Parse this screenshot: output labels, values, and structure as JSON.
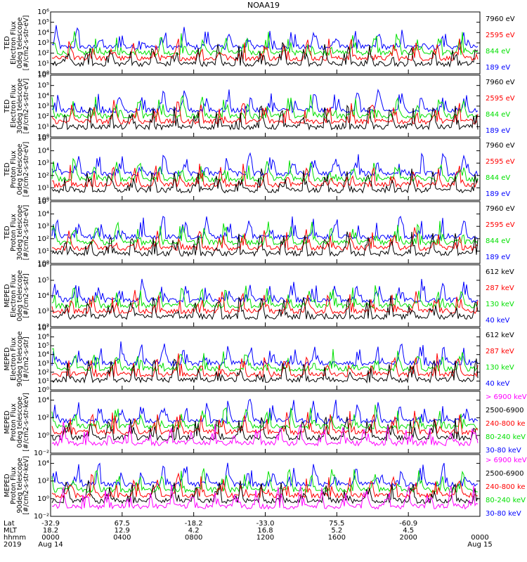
{
  "title": "NOAA19",
  "colors": {
    "black": "#000000",
    "red": "#ff0000",
    "green": "#00e000",
    "blue": "#0000ff",
    "magenta": "#ff00ff"
  },
  "chart_data": [
    {
      "type": "line",
      "ylabel": [
        "TED",
        "Electron Flux",
        "0deg telescope",
        "[#/cm2-s-str-eV]"
      ],
      "yscale": "log",
      "ylim_exp": [
        0,
        6
      ],
      "tick_labels": [
        "10⁰",
        "10¹",
        "10²",
        "10³",
        "10⁴",
        "10⁵",
        "10⁶"
      ],
      "series": [
        {
          "name": "7960 eV",
          "color": "#000000"
        },
        {
          "name": "2595 eV",
          "color": "#ff0000"
        },
        {
          "name": "844 eV",
          "color": "#00e000"
        },
        {
          "name": "189 eV",
          "color": "#0000ff"
        }
      ]
    },
    {
      "type": "line",
      "ylabel": [
        "TED",
        "Electron Flux",
        "30deg telescope",
        "[#/cm2-s-str-eV]"
      ],
      "yscale": "log",
      "ylim_exp": [
        0,
        6
      ],
      "tick_labels": [
        "10⁰",
        "10¹",
        "10²",
        "10³",
        "10⁴",
        "10⁵",
        "10⁶"
      ],
      "series": [
        {
          "name": "7960 eV",
          "color": "#000000"
        },
        {
          "name": "2595 eV",
          "color": "#ff0000"
        },
        {
          "name": "844 eV",
          "color": "#00e000"
        },
        {
          "name": "189 eV",
          "color": "#0000ff"
        }
      ]
    },
    {
      "type": "line",
      "ylabel": [
        "TED",
        "Proton Flux",
        "0deg telescope",
        "[#/cm2-s-str-eV]"
      ],
      "yscale": "log",
      "ylim_exp": [
        0,
        5
      ],
      "tick_labels": [
        "10⁰",
        "10¹",
        "10²",
        "10³",
        "10⁴",
        "10⁵"
      ],
      "series": [
        {
          "name": "7960 eV",
          "color": "#000000"
        },
        {
          "name": "2595 eV",
          "color": "#ff0000"
        },
        {
          "name": "844 eV",
          "color": "#00e000"
        },
        {
          "name": "189 eV",
          "color": "#0000ff"
        }
      ]
    },
    {
      "type": "line",
      "ylabel": [
        "TED",
        "Proton Flux",
        "30deg telescope",
        "[#/cm2-s-str-eV]"
      ],
      "yscale": "log",
      "ylim_exp": [
        0,
        5
      ],
      "tick_labels": [
        "10⁰",
        "10¹",
        "10²",
        "10³",
        "10⁴",
        "10⁵"
      ],
      "series": [
        {
          "name": "7960 eV",
          "color": "#000000"
        },
        {
          "name": "2595 eV",
          "color": "#ff0000"
        },
        {
          "name": "844 eV",
          "color": "#00e000"
        },
        {
          "name": "189 eV",
          "color": "#0000ff"
        }
      ]
    },
    {
      "type": "line",
      "ylabel": [
        "MEPED",
        "Electron Flux",
        "0deg telescope",
        "[#/cm2-s-str]"
      ],
      "yscale": "log",
      "ylim_exp": [
        2,
        6
      ],
      "tick_labels": [
        "10²",
        "10³",
        "10⁴",
        "10⁵",
        "10⁶"
      ],
      "series": [
        {
          "name": "612 keV",
          "color": "#000000"
        },
        {
          "name": "287 keV",
          "color": "#ff0000"
        },
        {
          "name": "130 keV",
          "color": "#00e000"
        },
        {
          "name": "40 keV",
          "color": "#0000ff"
        }
      ]
    },
    {
      "type": "line",
      "ylabel": [
        "MEPED",
        "Electron Flux",
        "90deg telescope",
        "[#/cm2-s-str]"
      ],
      "yscale": "log",
      "ylim_exp": [
        0,
        7
      ],
      "tick_labels": [
        "10⁰",
        "10¹",
        "10²",
        "10³",
        "10⁴",
        "10⁵",
        "10⁶",
        "10⁷"
      ],
      "series": [
        {
          "name": "612 keV",
          "color": "#000000"
        },
        {
          "name": "287 keV",
          "color": "#ff0000"
        },
        {
          "name": "130 keV",
          "color": "#00e000"
        },
        {
          "name": "40 keV",
          "color": "#0000ff"
        }
      ]
    },
    {
      "type": "line",
      "ylabel": [
        "MEPED",
        "Proton Flux",
        "0deg telescope",
        "[#/cm2-s-str-keV]"
      ],
      "yscale": "log",
      "ylim_exp": [
        -2,
        5
      ],
      "tick_labels": [
        "10⁻²",
        "10⁰",
        "10²",
        "10⁴"
      ],
      "series": [
        {
          "name": "> 6900 keV",
          "color": "#ff00ff"
        },
        {
          "name": "2500-6900",
          "color": "#000000"
        },
        {
          "name": "240-800 ke",
          "color": "#ff0000"
        },
        {
          "name": "80-240 keV",
          "color": "#00e000"
        },
        {
          "name": "30-80 keV",
          "color": "#0000ff"
        }
      ]
    },
    {
      "type": "line",
      "ylabel": [
        "MEPED",
        "Proton Flux",
        "90deg telescope",
        "[#/cm2-s-str-keV]"
      ],
      "yscale": "log",
      "ylim_exp": [
        -2,
        5
      ],
      "tick_labels": [
        "10⁻²",
        "10⁰",
        "10²",
        "10⁴"
      ],
      "series": [
        {
          "name": "> 6900 keV",
          "color": "#ff00ff"
        },
        {
          "name": "2500-6900",
          "color": "#000000"
        },
        {
          "name": "240-800 ke",
          "color": "#ff0000"
        },
        {
          "name": "80-240 keV",
          "color": "#00e000"
        },
        {
          "name": "30-80 keV",
          "color": "#0000ff"
        }
      ]
    }
  ],
  "x_axis": {
    "row_labels": [
      "Lat",
      "MLT",
      "hhmm",
      "2019"
    ],
    "ticks": [
      {
        "lat": "-32.9",
        "mlt": "18.2",
        "hhmm": "0000",
        "date": "Aug 14"
      },
      {
        "lat": "67.5",
        "mlt": "12.9",
        "hhmm": "0400",
        "date": ""
      },
      {
        "lat": "-18.2",
        "mlt": "4.2",
        "hhmm": "0800",
        "date": ""
      },
      {
        "lat": "-33.0",
        "mlt": "16.8",
        "hhmm": "1200",
        "date": ""
      },
      {
        "lat": "75.5",
        "mlt": "5.2",
        "hhmm": "1600",
        "date": ""
      },
      {
        "lat": "-60.9",
        "mlt": "4.5",
        "hhmm": "2000",
        "date": ""
      },
      {
        "lat": "",
        "mlt": "",
        "hhmm": "0000",
        "date": "Aug 15"
      }
    ]
  }
}
